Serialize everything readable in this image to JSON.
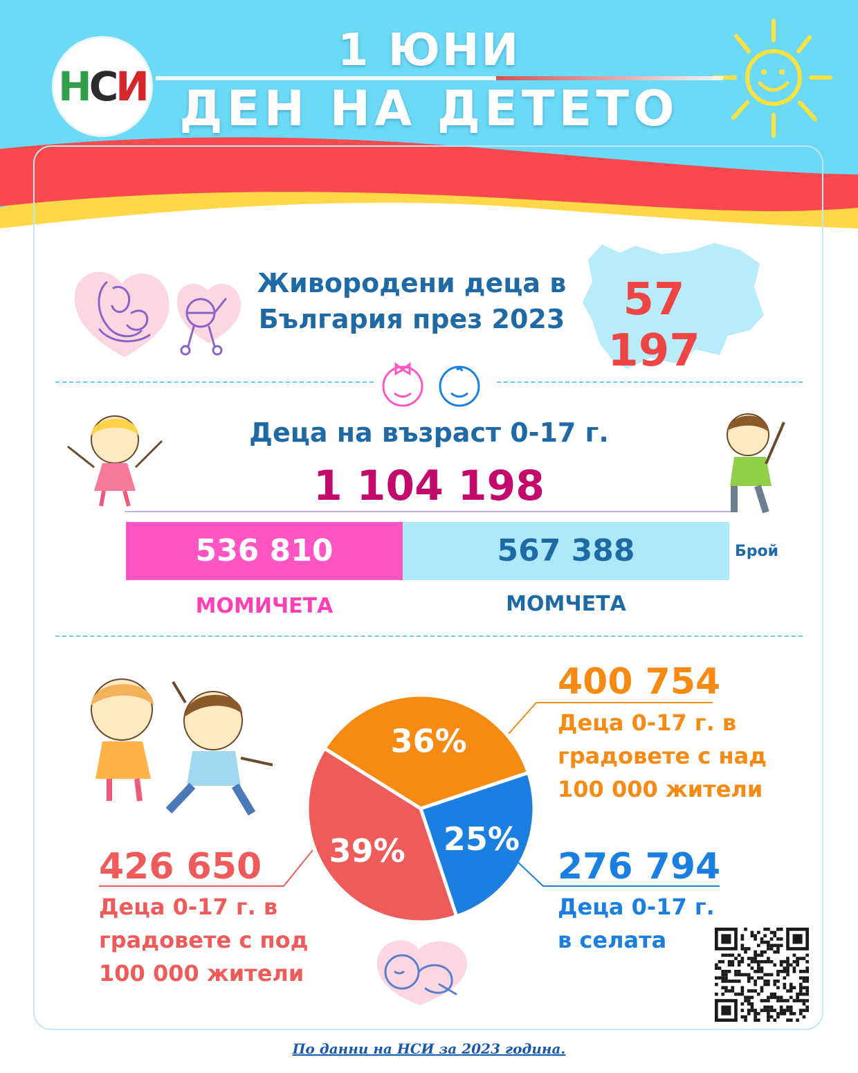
{
  "header": {
    "logo_text_1": "Н",
    "logo_text_2": "С",
    "logo_text_3": "И",
    "title_line1": "1 ЮНИ",
    "title_line2": "ДЕН НА ДЕТЕТО"
  },
  "births": {
    "label_line1": "Живородени деца в",
    "label_line2": "България през 2023",
    "value": "57 197"
  },
  "children": {
    "title": "Деца на възраст 0-17 г.",
    "total": "1 104 198",
    "unit": "Брой",
    "girls_value": "536 810",
    "boys_value": "567 388",
    "girls_label": "МОМИЧЕТА",
    "boys_label": "МОМЧЕТА"
  },
  "distribution": {
    "orange_value": "400 754",
    "orange_desc": [
      "Деца 0-17 г. в",
      "градовете с над",
      "100 000 жители"
    ],
    "blue_value": "276 794",
    "blue_desc": [
      "Деца 0-17 г.",
      "в селата"
    ],
    "red_value": "426 650",
    "red_desc": [
      "Деца 0-17 г. в",
      "градовете с под",
      "100 000 жители"
    ]
  },
  "footnote": "По данни на НСИ за 2023 година.",
  "colors": {
    "sky": "#6cd9f7",
    "girls": "#ff55c4",
    "boys": "#aee8fb",
    "orange": "#f68a12",
    "blue": "#1a7fe0",
    "red": "#ef5b5b",
    "total": "#c3096b"
  },
  "chart_data": [
    {
      "type": "bar",
      "orientation": "stacked-horizontal",
      "categories": [
        "МОМИЧЕТА",
        "МОМЧЕТА"
      ],
      "values": [
        536810,
        567388
      ],
      "unit": "Брой",
      "title": "Деца на възраст 0-17 г."
    },
    {
      "type": "pie",
      "slices": [
        {
          "label": "36%",
          "percent": 36,
          "value": 400754,
          "color": "#f68a12"
        },
        {
          "label": "25%",
          "percent": 25,
          "value": 276794,
          "color": "#1a7fe0"
        },
        {
          "label": "39%",
          "percent": 39,
          "value": 426650,
          "color": "#ef5b5b"
        }
      ]
    }
  ]
}
